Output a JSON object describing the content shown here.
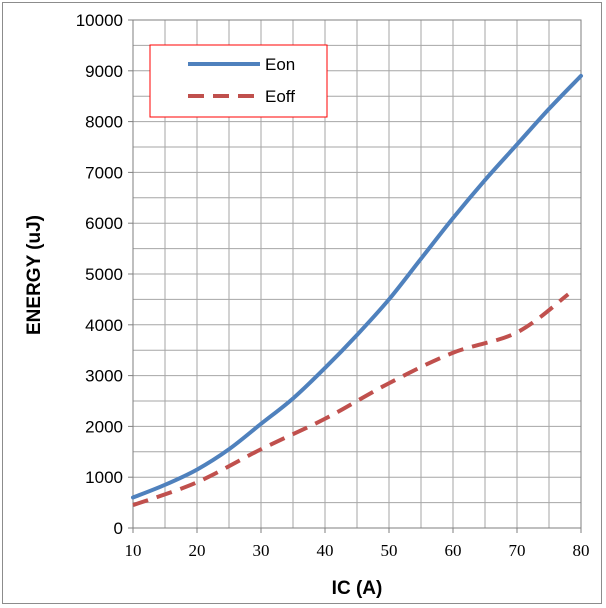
{
  "chart_data": {
    "type": "line",
    "title": "",
    "xlabel": "IC  (A)",
    "ylabel": "ENERGY  (uJ)",
    "xlim": [
      10,
      80
    ],
    "ylim": [
      0,
      10000
    ],
    "x_ticks": [
      10,
      20,
      30,
      40,
      50,
      60,
      70,
      80
    ],
    "y_ticks": [
      0,
      1000,
      2000,
      3000,
      4000,
      5000,
      6000,
      7000,
      8000,
      9000,
      10000
    ],
    "grid": true,
    "legend_position": "top-left",
    "series": [
      {
        "name": "Eon",
        "color": "#4f81bd",
        "style": "solid",
        "x": [
          10,
          15,
          20,
          25,
          30,
          35,
          40,
          45,
          50,
          55,
          60,
          65,
          70,
          75,
          80
        ],
        "y": [
          600,
          850,
          1150,
          1550,
          2050,
          2550,
          3150,
          3800,
          4500,
          5300,
          6100,
          6850,
          7550,
          8250,
          8900
        ]
      },
      {
        "name": "Eoff",
        "color": "#c0504d",
        "style": "dashed",
        "x": [
          10,
          20,
          30,
          40,
          50,
          60,
          70,
          78
        ],
        "y": [
          450,
          900,
          1550,
          2150,
          2850,
          3450,
          3850,
          4600
        ]
      }
    ]
  }
}
